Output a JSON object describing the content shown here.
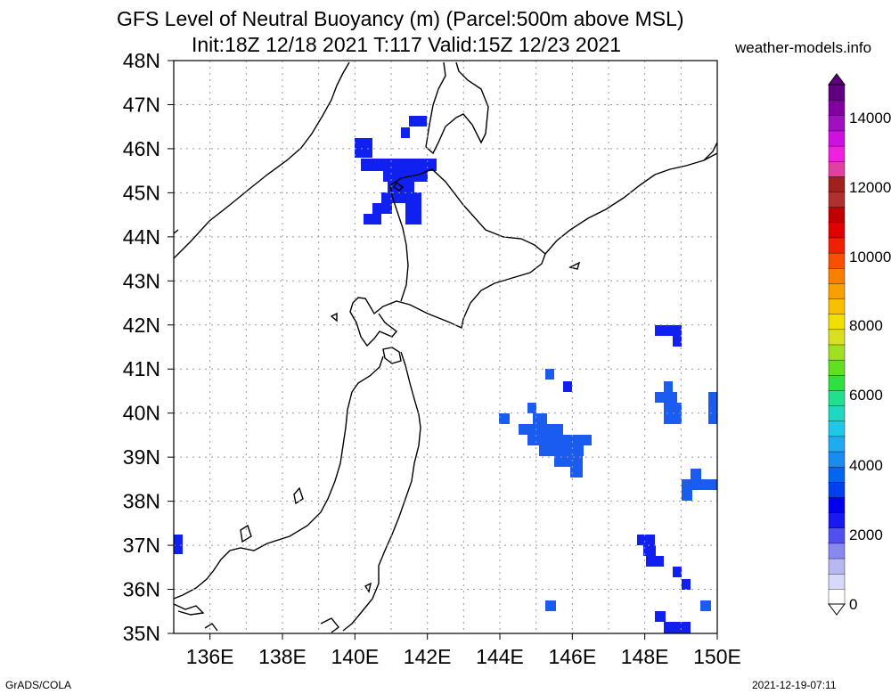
{
  "header": {
    "title_line1": "GFS Level of Neutral Buoyancy (m) (Parcel:500m above MSL)",
    "title_line2": "Init:18Z 12/18 2021 T:117 Valid:15Z 12/23 2021",
    "site": "weather-models.info"
  },
  "footer": {
    "left": "GrADS/COLA",
    "right": "2021-12-19-07:11"
  },
  "map": {
    "lat_labels": [
      "48N",
      "47N",
      "46N",
      "45N",
      "44N",
      "43N",
      "42N",
      "41N",
      "40N",
      "39N",
      "38N",
      "37N",
      "36N",
      "35N"
    ],
    "lon_labels": [
      "136E",
      "138E",
      "140E",
      "142E",
      "144E",
      "146E",
      "148E",
      "150E"
    ],
    "colorbar_labels": [
      "0",
      "2000",
      "4000",
      "6000",
      "8000",
      "10000",
      "12000",
      "14000"
    ],
    "colorbar_colors": [
      "#ffffff",
      "#d8d8f8",
      "#b8b8f0",
      "#8888f0",
      "#5050f0",
      "#1818f0",
      "#0000ee",
      "#0040f0",
      "#0066f0",
      "#1a8cf0",
      "#22aaf0",
      "#20c8e8",
      "#20d8c0",
      "#20e090",
      "#30e040",
      "#60e020",
      "#a0e020",
      "#d8e020",
      "#f0e000",
      "#f8c000",
      "#f8a000",
      "#f88000",
      "#f85000",
      "#f02000",
      "#e00000",
      "#c00000",
      "#b03030",
      "#a02020",
      "#e040a0",
      "#f020e0",
      "#d010e0",
      "#a010c0",
      "#8000a0",
      "#600080"
    ]
  }
}
